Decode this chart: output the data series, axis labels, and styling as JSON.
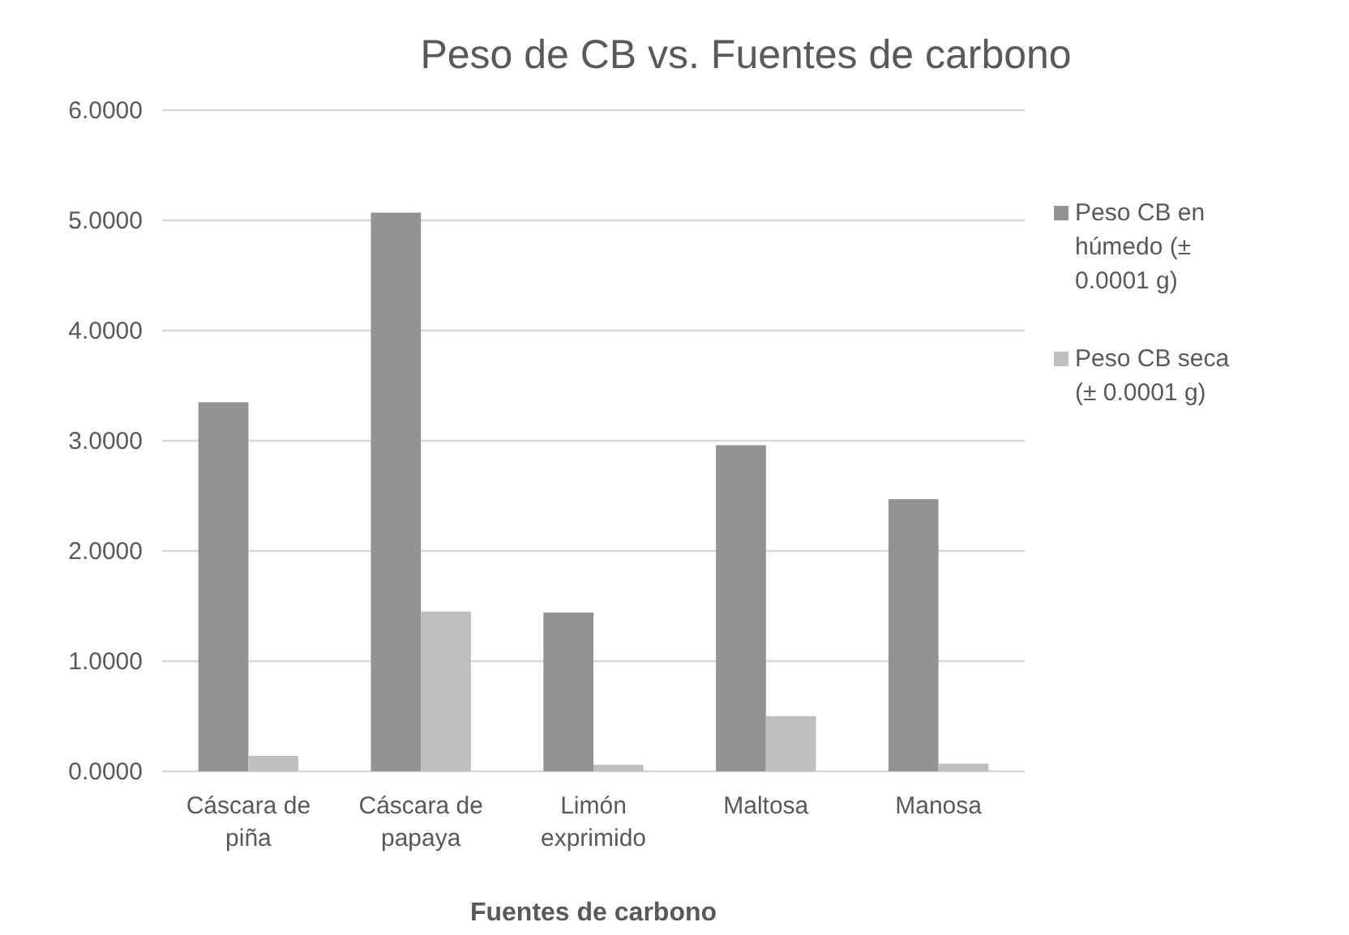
{
  "chart_data": {
    "type": "bar",
    "title": "Peso de CB vs. Fuentes de carbono",
    "xlabel": "Fuentes de carbono",
    "categories": [
      "Cáscara de piña",
      "Cáscara de papaya",
      "Limón exprimido",
      "Maltosa",
      "Manosa"
    ],
    "series": [
      {
        "name": "Peso CB en húmedo (± 0.0001 g)",
        "color": "#939393",
        "values": [
          3.35,
          5.07,
          1.44,
          2.96,
          2.47
        ]
      },
      {
        "name": "Peso CB seca (± 0.0001 g)",
        "color": "#bfbfbf",
        "values": [
          0.14,
          1.45,
          0.06,
          0.5,
          0.07
        ]
      }
    ],
    "ylim": [
      0,
      6
    ],
    "yticks": [
      {
        "value": 0,
        "label": "0.0000"
      },
      {
        "value": 1,
        "label": "1.0000"
      },
      {
        "value": 2,
        "label": "2.0000"
      },
      {
        "value": 3,
        "label": "3.0000"
      },
      {
        "value": 4,
        "label": "4.0000"
      },
      {
        "value": 5,
        "label": "5.0000"
      },
      {
        "value": 6,
        "label": "6.0000"
      }
    ],
    "grid": "y",
    "legend": "right"
  }
}
